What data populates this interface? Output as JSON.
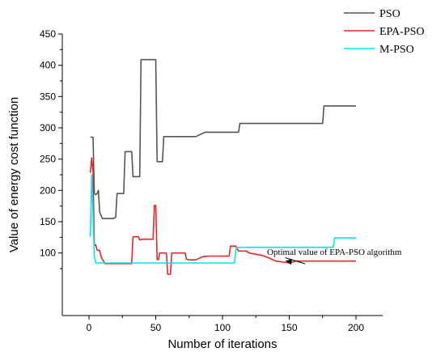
{
  "chart_data": {
    "type": "line",
    "xlabel": "Number of iterations",
    "ylabel": "Value of energy cost function",
    "xlim": [
      -20,
      220
    ],
    "ylim": [
      0,
      450
    ],
    "xticks": [
      0,
      50,
      100,
      150,
      200
    ],
    "yticks": [
      100,
      150,
      200,
      250,
      300,
      350,
      400,
      450
    ],
    "grid": false,
    "legend_position": "top-right",
    "series": [
      {
        "name": "PSO",
        "color": "#555555",
        "x": [
          1,
          3,
          4,
          5,
          6,
          7,
          8,
          10,
          15,
          18,
          20,
          21,
          26,
          27,
          32,
          33,
          38,
          39,
          45,
          46,
          50,
          51,
          55,
          56,
          65,
          70,
          80,
          87,
          100,
          110,
          112,
          113,
          150,
          175,
          176,
          200
        ],
        "y": [
          285,
          285,
          195,
          193,
          195,
          200,
          165,
          155,
          155,
          155,
          157,
          195,
          195,
          262,
          262,
          222,
          222,
          409,
          409,
          409,
          409,
          246,
          246,
          286,
          286,
          286,
          286,
          293,
          293,
          293,
          293,
          307,
          307,
          307,
          335,
          335
        ]
      },
      {
        "name": "EPA-PSO",
        "color": "#e8262a",
        "x": [
          1,
          2,
          3,
          4,
          5,
          6,
          7,
          8,
          9,
          10,
          12,
          20,
          25,
          30,
          32,
          33,
          37,
          38,
          40,
          46,
          48,
          49,
          50,
          51,
          52,
          53,
          55,
          58,
          59,
          61,
          62,
          68,
          72,
          73,
          75,
          80,
          85,
          90,
          100,
          105,
          106,
          110,
          112,
          118,
          120,
          125,
          130,
          135,
          140,
          150,
          155,
          200
        ],
        "y": [
          228,
          252,
          230,
          112,
          113,
          105,
          104,
          104,
          95,
          90,
          83,
          83,
          83,
          83,
          83,
          126,
          126,
          121,
          122,
          122,
          122,
          176,
          176,
          90,
          89,
          100,
          100,
          100,
          66,
          66,
          100,
          100,
          100,
          90,
          89,
          89,
          94,
          95,
          95,
          95,
          111,
          111,
          103,
          103,
          100,
          98,
          96,
          92,
          87,
          84,
          87,
          87
        ]
      },
      {
        "name": "M-PSO",
        "color": "#00e5ee",
        "x": [
          1,
          2,
          3,
          4,
          5,
          6,
          10,
          30,
          50,
          80,
          109,
          110,
          111,
          112,
          130,
          150,
          183,
          184,
          200
        ],
        "y": [
          126,
          225,
          160,
          95,
          84,
          84,
          84,
          84,
          84,
          84,
          84,
          104,
          109,
          109,
          109,
          109,
          109,
          124,
          124
        ]
      }
    ],
    "annotation": {
      "text": "Optimal value of EPA-PSO algorithm",
      "x": 147,
      "y": 86
    }
  }
}
